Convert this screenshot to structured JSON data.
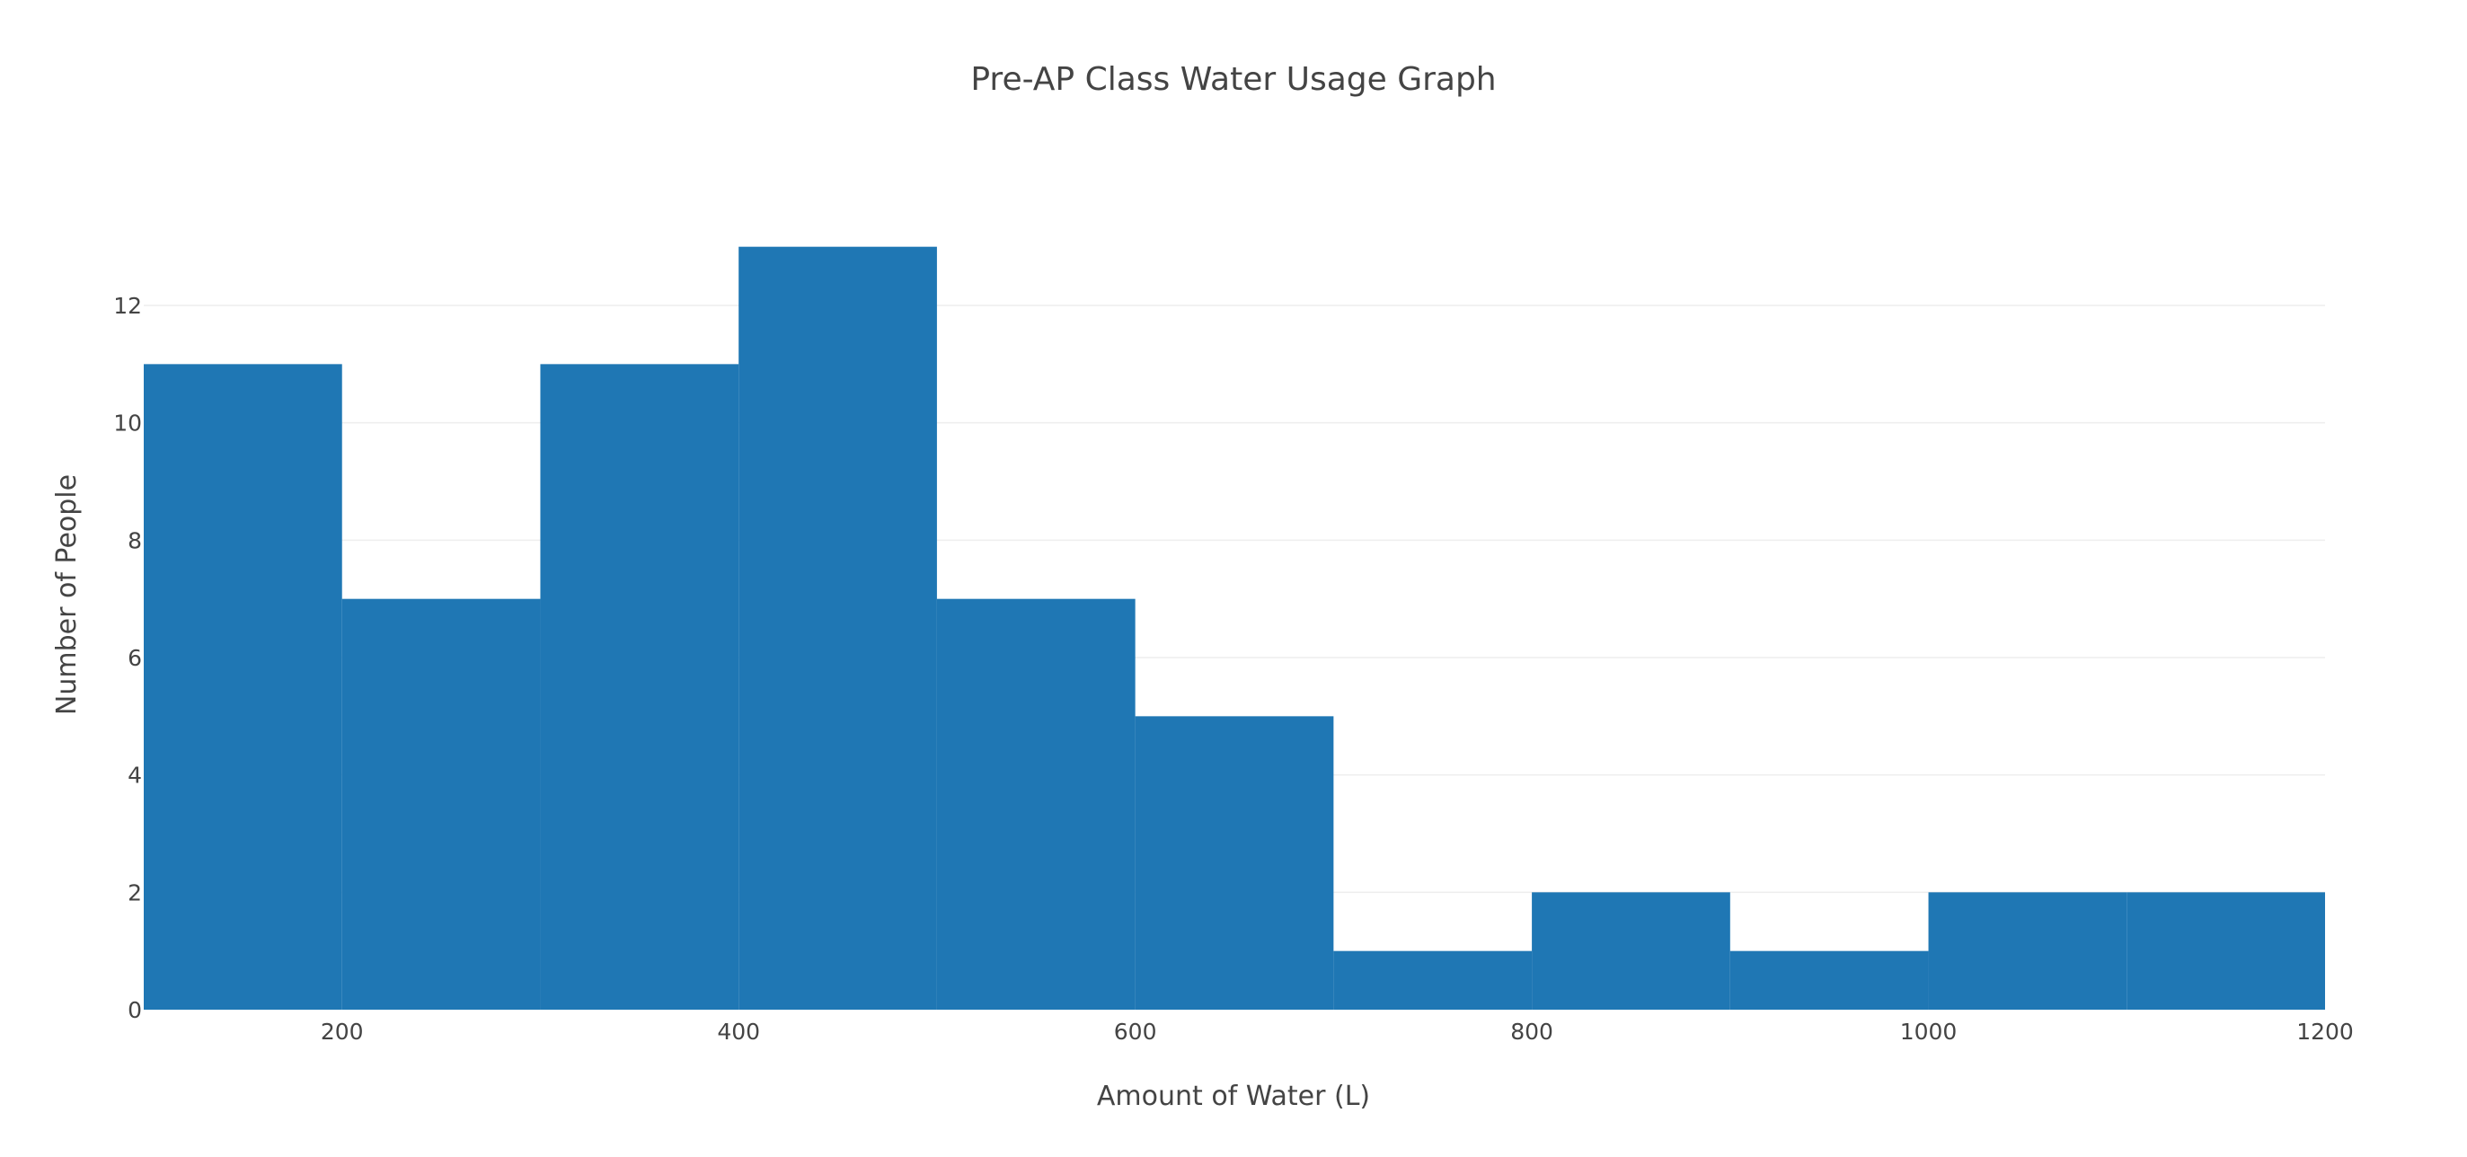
{
  "chart_data": {
    "type": "bar",
    "title": "Pre-AP Class Water Usage Graph",
    "xlabel": "Amount of Water (L)",
    "ylabel": "Number of People",
    "bins": [
      {
        "start": 100,
        "end": 200,
        "count": 11
      },
      {
        "start": 200,
        "end": 300,
        "count": 7
      },
      {
        "start": 300,
        "end": 400,
        "count": 11
      },
      {
        "start": 400,
        "end": 500,
        "count": 13
      },
      {
        "start": 500,
        "end": 600,
        "count": 7
      },
      {
        "start": 600,
        "end": 700,
        "count": 5
      },
      {
        "start": 700,
        "end": 800,
        "count": 1
      },
      {
        "start": 800,
        "end": 900,
        "count": 2
      },
      {
        "start": 900,
        "end": 1000,
        "count": 1
      },
      {
        "start": 1000,
        "end": 1100,
        "count": 2
      },
      {
        "start": 1100,
        "end": 1200,
        "count": 2
      }
    ],
    "xlim": [
      100,
      1200
    ],
    "ylim": [
      0,
      13.684
    ],
    "x_ticks": [
      200,
      400,
      600,
      800,
      1000,
      1200
    ],
    "y_ticks": [
      0,
      2,
      4,
      6,
      8,
      10,
      12
    ],
    "grid": true,
    "bar_color": "#1f77b4"
  }
}
